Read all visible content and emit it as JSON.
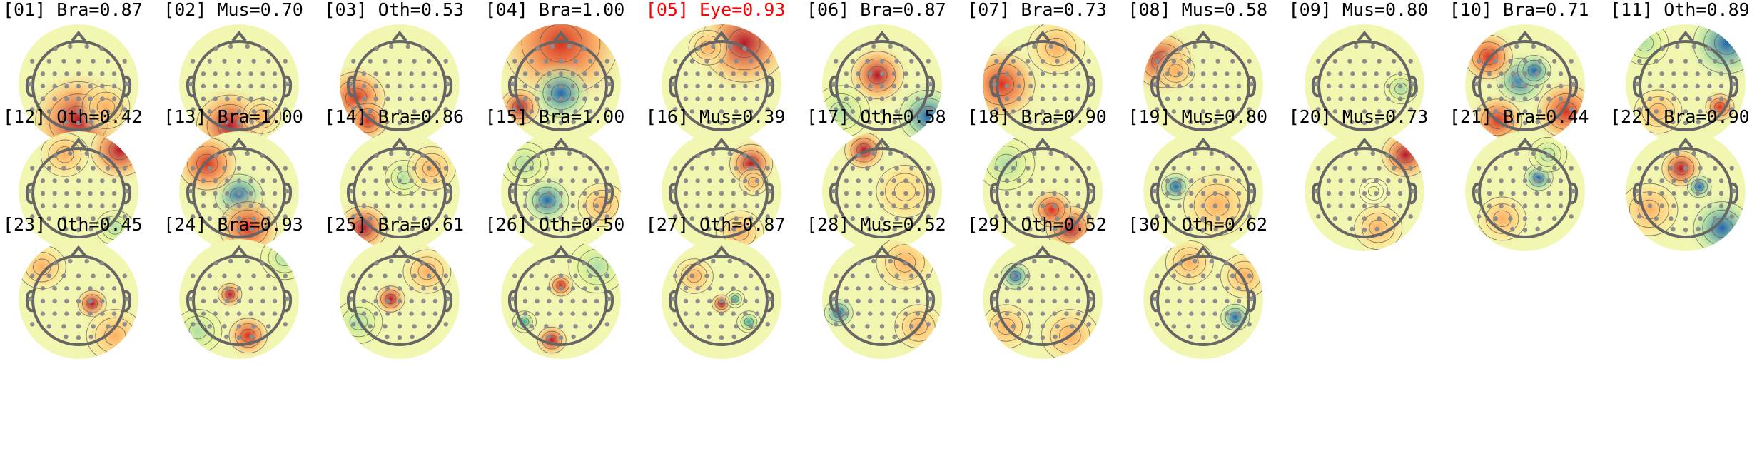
{
  "figure": {
    "components": [
      {
        "label": "[01] Bra=0.87",
        "category": "Bra",
        "score": 0.87,
        "color": "#000000"
      },
      {
        "label": "[02] Mus=0.70",
        "category": "Mus",
        "score": 0.7,
        "color": "#000000"
      },
      {
        "label": "[03] Oth=0.53",
        "category": "Oth",
        "score": 0.53,
        "color": "#000000"
      },
      {
        "label": "[04] Bra=1.00",
        "category": "Bra",
        "score": 1.0,
        "color": "#000000"
      },
      {
        "label": "[05] Eye=0.93",
        "category": "Eye",
        "score": 0.93,
        "color": "#ff0000"
      },
      {
        "label": "[06] Bra=0.87",
        "category": "Bra",
        "score": 0.87,
        "color": "#000000"
      },
      {
        "label": "[07] Bra=0.73",
        "category": "Bra",
        "score": 0.73,
        "color": "#000000"
      },
      {
        "label": "[08] Mus=0.58",
        "category": "Mus",
        "score": 0.58,
        "color": "#000000"
      },
      {
        "label": "[09] Mus=0.80",
        "category": "Mus",
        "score": 0.8,
        "color": "#000000"
      },
      {
        "label": "[10] Bra=0.71",
        "category": "Bra",
        "score": 0.71,
        "color": "#000000"
      },
      {
        "label": "[11] Oth=0.89",
        "category": "Oth",
        "score": 0.89,
        "color": "#000000"
      },
      {
        "label": "[12] Oth=0.42",
        "category": "Oth",
        "score": 0.42,
        "color": "#000000"
      },
      {
        "label": "[13] Bra=1.00",
        "category": "Bra",
        "score": 1.0,
        "color": "#000000"
      },
      {
        "label": "[14] Bra=0.86",
        "category": "Bra",
        "score": 0.86,
        "color": "#000000"
      },
      {
        "label": "[15] Bra=1.00",
        "category": "Bra",
        "score": 1.0,
        "color": "#000000"
      },
      {
        "label": "[16] Mus=0.39",
        "category": "Mus",
        "score": 0.39,
        "color": "#000000"
      },
      {
        "label": "[17] Oth=0.58",
        "category": "Oth",
        "score": 0.58,
        "color": "#000000"
      },
      {
        "label": "[18] Bra=0.90",
        "category": "Bra",
        "score": 0.9,
        "color": "#000000"
      },
      {
        "label": "[19] Mus=0.80",
        "category": "Mus",
        "score": 0.8,
        "color": "#000000"
      },
      {
        "label": "[20] Mus=0.73",
        "category": "Mus",
        "score": 0.73,
        "color": "#000000"
      },
      {
        "label": "[21] Bra=0.44",
        "category": "Bra",
        "score": 0.44,
        "color": "#000000"
      },
      {
        "label": "[22] Bra=0.90",
        "category": "Bra",
        "score": 0.9,
        "color": "#000000"
      },
      {
        "label": "[23] Oth=0.45",
        "category": "Oth",
        "score": 0.45,
        "color": "#000000"
      },
      {
        "label": "[24] Bra=0.93",
        "category": "Bra",
        "score": 0.93,
        "color": "#000000"
      },
      {
        "label": "[25] Bra=0.61",
        "category": "Bra",
        "score": 0.61,
        "color": "#000000"
      },
      {
        "label": "[26] Oth=0.50",
        "category": "Oth",
        "score": 0.5,
        "color": "#000000"
      },
      {
        "label": "[27] Oth=0.87",
        "category": "Oth",
        "score": 0.87,
        "color": "#000000"
      },
      {
        "label": "[28] Mus=0.52",
        "category": "Mus",
        "score": 0.52,
        "color": "#000000"
      },
      {
        "label": "[29] Oth=0.52",
        "category": "Oth",
        "score": 0.52,
        "color": "#000000"
      },
      {
        "label": "[30] Oth=0.62",
        "category": "Oth",
        "score": 0.62,
        "color": "#000000"
      }
    ],
    "colormap": [
      "#2166ac",
      "#3ba89a",
      "#abdda4",
      "#e6f598",
      "#ffffbf",
      "#fee08b",
      "#fdae61",
      "#d7301f",
      "#b2182b"
    ]
  }
}
